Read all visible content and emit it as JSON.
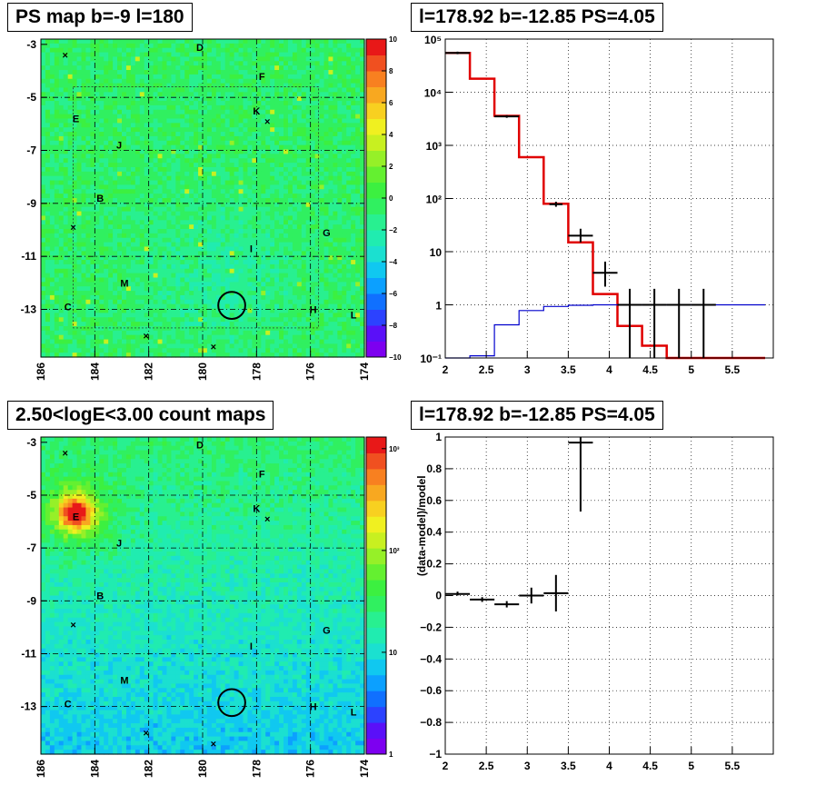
{
  "titles": {
    "top_left": "PS map b=-9 l=180",
    "top_right": "l=178.92 b=-12.85 PS=4.05",
    "bottom_left": "2.50<logE<3.00 count maps",
    "bottom_right": "l=178.92 b=-12.85 PS=4.05"
  },
  "chart_data": [
    {
      "type": "heatmap",
      "title": "PS map b=-9 l=180",
      "x_ticks": [
        "186",
        "184",
        "182",
        "180",
        "178",
        "176",
        "174"
      ],
      "y_ticks": [
        "-3",
        "-5",
        "-7",
        "-9",
        "-11",
        "-13"
      ],
      "xlim": [
        186,
        174
      ],
      "ylim": [
        -14.8,
        -2.8
      ],
      "colorbar": {
        "range": [
          -10,
          10
        ],
        "ticks": [
          "10",
          "8",
          "6",
          "4",
          "2",
          "0",
          "−2",
          "−4",
          "−6",
          "−8",
          "−10"
        ],
        "log": false
      },
      "dominant_value": 0,
      "source_labels": [
        {
          "text": "D",
          "l": 180.1,
          "b": -3.1
        },
        {
          "text": "F",
          "l": 177.8,
          "b": -4.2
        },
        {
          "text": "K",
          "l": 178.0,
          "b": -5.5
        },
        {
          "text": "E",
          "l": 184.7,
          "b": -5.8
        },
        {
          "text": "J",
          "l": 183.1,
          "b": -6.8
        },
        {
          "text": "B",
          "l": 183.8,
          "b": -8.8
        },
        {
          "text": "G",
          "l": 175.4,
          "b": -10.1
        },
        {
          "text": "I",
          "l": 178.2,
          "b": -10.7
        },
        {
          "text": "M",
          "l": 182.9,
          "b": -12.0
        },
        {
          "text": "C",
          "l": 185.0,
          "b": -12.9
        },
        {
          "text": "H",
          "l": 175.9,
          "b": -13.0
        },
        {
          "text": "L",
          "l": 174.4,
          "b": -13.2
        }
      ],
      "crosses": [
        {
          "l": 185.1,
          "b": -3.4
        },
        {
          "l": 177.6,
          "b": -5.9
        },
        {
          "l": 184.8,
          "b": -9.9
        },
        {
          "l": 182.1,
          "b": -14.0
        },
        {
          "l": 179.6,
          "b": -14.4
        }
      ],
      "circle": {
        "l": 178.92,
        "b": -12.85,
        "radius_deg": 0.5
      }
    },
    {
      "type": "line",
      "title": "l=178.92 b=-12.85 PS=4.05",
      "x_ticks": [
        "2",
        "2.5",
        "3",
        "3.5",
        "4",
        "4.5",
        "5",
        "5.5"
      ],
      "y_ticks": [
        "10⁻¹",
        "1",
        "10",
        "10²",
        "10³",
        "10⁴",
        "10⁵"
      ],
      "xlim": [
        2,
        6
      ],
      "ylim": [
        0.1,
        100000
      ],
      "ylog": true,
      "grid": true,
      "bin_edges": [
        2.0,
        2.3,
        2.6,
        2.9,
        3.2,
        3.5,
        3.8,
        4.1,
        4.4,
        4.7,
        5.0,
        5.3,
        5.6,
        5.9
      ],
      "series": [
        {
          "color": "#e00000",
          "step_values": [
            55000,
            18000,
            3600,
            600,
            80,
            15,
            1.6,
            0.4,
            0.17,
            0.1,
            0.1,
            0.1,
            0.1
          ]
        },
        {
          "color": "#0000cc",
          "step_values": [
            0.1,
            0.11,
            0.42,
            0.78,
            0.93,
            0.98,
            1.0,
            1.0,
            1.0,
            1.0,
            1.0,
            1.0,
            1.0
          ]
        }
      ],
      "points": [
        {
          "x": 2.15,
          "y": 55000,
          "xerr": 0.15,
          "ylo": 52000,
          "yhi": 58000
        },
        {
          "x": 2.75,
          "y": 3500,
          "xerr": 0.15,
          "ylo": 3300,
          "yhi": 3700
        },
        {
          "x": 3.35,
          "y": 78,
          "xerr": 0.08,
          "ylo": 70,
          "yhi": 87
        },
        {
          "x": 3.65,
          "y": 20,
          "xerr": 0.15,
          "ylo": 15,
          "yhi": 27
        },
        {
          "x": 3.95,
          "y": 4,
          "xerr": 0.15,
          "ylo": 2.2,
          "yhi": 6.5
        },
        {
          "x": 4.25,
          "y": 1,
          "xerr": 0.15,
          "ylo": 0.1,
          "yhi": 2.0
        },
        {
          "x": 4.55,
          "y": 1,
          "xerr": 0.15,
          "ylo": 0.1,
          "yhi": 2.0
        },
        {
          "x": 4.85,
          "y": 1,
          "xerr": 0.15,
          "ylo": 0.1,
          "yhi": 2.0
        },
        {
          "x": 5.15,
          "y": 1,
          "xerr": 0.15,
          "ylo": 0.1,
          "yhi": 2.0
        }
      ]
    },
    {
      "type": "heatmap",
      "title": "2.50<logE<3.00 count maps",
      "x_ticks": [
        "186",
        "184",
        "182",
        "180",
        "178",
        "176",
        "174"
      ],
      "y_ticks": [
        "-3",
        "-5",
        "-7",
        "-9",
        "-11",
        "-13"
      ],
      "xlim": [
        186,
        174
      ],
      "ylim": [
        -14.8,
        -2.8
      ],
      "colorbar": {
        "range": [
          1,
          1300
        ],
        "ticks": [
          "10³",
          "10²",
          "10",
          "1"
        ],
        "log": true
      },
      "bright_source": {
        "label": "E",
        "l": 184.7,
        "b": -5.7
      },
      "source_labels": [
        {
          "text": "D",
          "l": 180.1,
          "b": -3.1
        },
        {
          "text": "F",
          "l": 177.8,
          "b": -4.2
        },
        {
          "text": "K",
          "l": 178.0,
          "b": -5.5
        },
        {
          "text": "E",
          "l": 184.7,
          "b": -5.8
        },
        {
          "text": "J",
          "l": 183.1,
          "b": -6.8
        },
        {
          "text": "B",
          "l": 183.8,
          "b": -8.8
        },
        {
          "text": "G",
          "l": 175.4,
          "b": -10.1
        },
        {
          "text": "I",
          "l": 178.2,
          "b": -10.7
        },
        {
          "text": "M",
          "l": 182.9,
          "b": -12.0
        },
        {
          "text": "C",
          "l": 185.0,
          "b": -12.9
        },
        {
          "text": "H",
          "l": 175.9,
          "b": -13.0
        },
        {
          "text": "L",
          "l": 174.4,
          "b": -13.2
        }
      ],
      "crosses": [
        {
          "l": 185.1,
          "b": -3.4
        },
        {
          "l": 177.6,
          "b": -5.9
        },
        {
          "l": 184.8,
          "b": -9.9
        },
        {
          "l": 182.1,
          "b": -14.0
        },
        {
          "l": 179.6,
          "b": -14.4
        }
      ],
      "circle": {
        "l": 178.92,
        "b": -12.85,
        "radius_deg": 0.5
      }
    },
    {
      "type": "scatter",
      "title": "l=178.92 b=-12.85 PS=4.05",
      "ylabel": "(data-model)/model",
      "x_ticks": [
        "2",
        "2.5",
        "3",
        "3.5",
        "4",
        "4.5",
        "5",
        "5.5"
      ],
      "y_ticks": [
        "1",
        "0.8",
        "0.6",
        "0.4",
        "0.2",
        "0",
        "−0.2",
        "−0.4",
        "−0.6",
        "−0.8",
        "−1"
      ],
      "xlim": [
        2,
        6
      ],
      "ylim": [
        -1,
        1
      ],
      "grid": true,
      "points": [
        {
          "x": 2.15,
          "y": 0.01,
          "xerr": 0.15,
          "ylo": 0.0,
          "yhi": 0.025
        },
        {
          "x": 2.45,
          "y": -0.025,
          "xerr": 0.15,
          "ylo": -0.04,
          "yhi": -0.01
        },
        {
          "x": 2.75,
          "y": -0.055,
          "xerr": 0.15,
          "ylo": -0.075,
          "yhi": -0.035
        },
        {
          "x": 3.05,
          "y": 0.0,
          "xerr": 0.15,
          "ylo": -0.05,
          "yhi": 0.05
        },
        {
          "x": 3.35,
          "y": 0.015,
          "xerr": 0.15,
          "ylo": -0.1,
          "yhi": 0.13
        },
        {
          "x": 3.65,
          "y": 0.965,
          "xerr": 0.15,
          "ylo": 0.53,
          "yhi": 1.0
        }
      ]
    }
  ]
}
